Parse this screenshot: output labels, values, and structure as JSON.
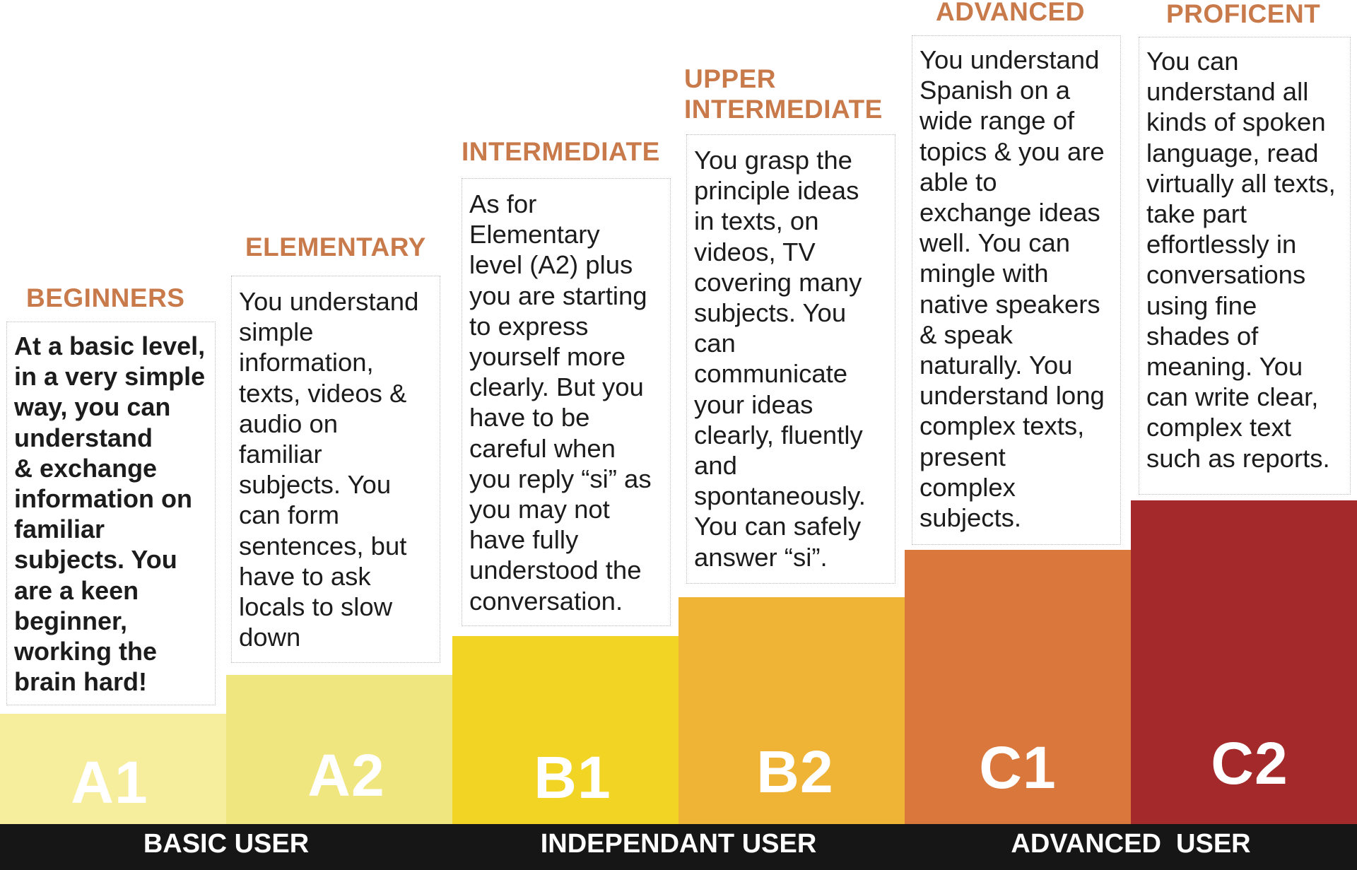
{
  "levels": [
    {
      "heading": "BEGINNERS",
      "description": "At a basic level,\nin a very simple\nway, you can\nunderstand\n& exchange\ninformation on\nfamiliar\nsubjects. You\nare a keen\nbeginner,\nworking the\nbrain hard!",
      "code": "A1",
      "color": "#f6ed9d"
    },
    {
      "heading": "ELEMENTARY",
      "description": "You understand\nsimple\ninformation,\ntexts, videos &\naudio on\nfamiliar\nsubjects.  You\ncan form\nsentences, but\nhave to ask\nlocals to slow\ndown",
      "code": "A2",
      "color": "#f0e680"
    },
    {
      "heading": "INTERMEDIATE",
      "description": "As for\nElementary\nlevel (A2) plus\nyou are starting\nto express\nyourself more\nclearly. But you\nhave to be\ncareful when\nyou reply “si” as\nyou may not\nhave fully\nunderstood  the\nconversation.",
      "code": "B1",
      "color": "#f2d524"
    },
    {
      "heading": "UPPER\nINTERMEDIATE",
      "description": "You grasp the\nprinciple ideas\nin texts, on\nvideos, TV\ncovering  many\nsubjects. You\ncan\ncommunicate\nyour ideas\nclearly, fluently\nand\nspontaneously.\nYou can safely\nanswer “si”.",
      "code": "B2",
      "color": "#efb336"
    },
    {
      "heading": "ADVANCED",
      "description": "You understand\nSpanish on a\nwide range of\ntopics & you are\nable to\nexchange ideas\nwell. You can\nmingle with\nnative speakers\n& speak\nnaturally. You\nunderstand long\ncomplex texts,\npresent\ncomplex\nsubjects.",
      "code": "C1",
      "color": "#d9773d"
    },
    {
      "heading": "PROFICENT",
      "description": "You can\nunderstand all\nkinds of spoken\nlanguage, read\nvirtually all texts,\ntake part\neffortlessly in\nconversations\nusing fine\nshades of\nmeaning.  You\ncan write clear,\ncomplex text\nsuch as reports.",
      "code": "C2",
      "color": "#a3292a"
    }
  ],
  "user_groups": [
    {
      "label": "BASIC USER"
    },
    {
      "label": "INDEPENDANT USER"
    },
    {
      "label": "ADVANCED  USER"
    }
  ],
  "bar_color": "#161616",
  "heading_color": "#c97a4b"
}
